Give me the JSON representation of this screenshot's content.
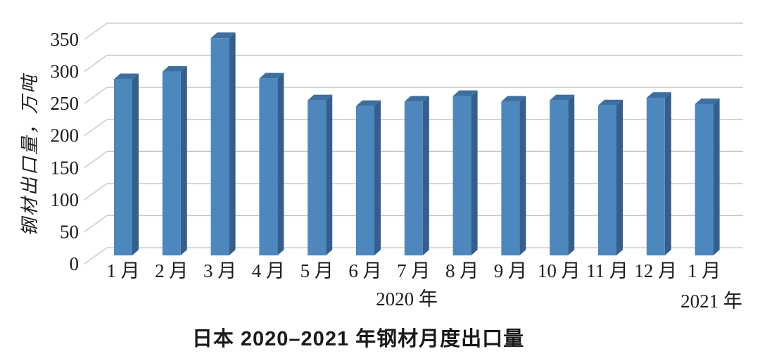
{
  "chart_data": {
    "type": "bar",
    "style": "3d-column",
    "title": "日本 2020–2021 年钢材月度出口量",
    "ylabel": "钢材出口量，万吨",
    "xlabel": "",
    "categories": [
      "1 月",
      "2 月",
      "3 月",
      "4 月",
      "5 月",
      "6 月",
      "7 月",
      "8 月",
      "9 月",
      "10 月",
      "11 月",
      "12 月",
      "1 月"
    ],
    "values": [
      283,
      295,
      349,
      284,
      249,
      240,
      247,
      256,
      247,
      249,
      241,
      253,
      243
    ],
    "x_axis_groups": [
      {
        "label": "2020 年",
        "span": "1 月 – 12 月"
      },
      {
        "label": "2021 年",
        "span": "1 月"
      }
    ],
    "yticks": [
      0,
      50,
      100,
      150,
      200,
      250,
      300,
      350
    ],
    "ylim": [
      0,
      350
    ],
    "grid": true,
    "legend": "none",
    "colors": {
      "bar_front": "#4C87BE",
      "bar_top": "#3E6F9F",
      "bar_side": "#345F8D",
      "gridline": "#C4C4C4",
      "text": "#1C1C1C"
    }
  }
}
